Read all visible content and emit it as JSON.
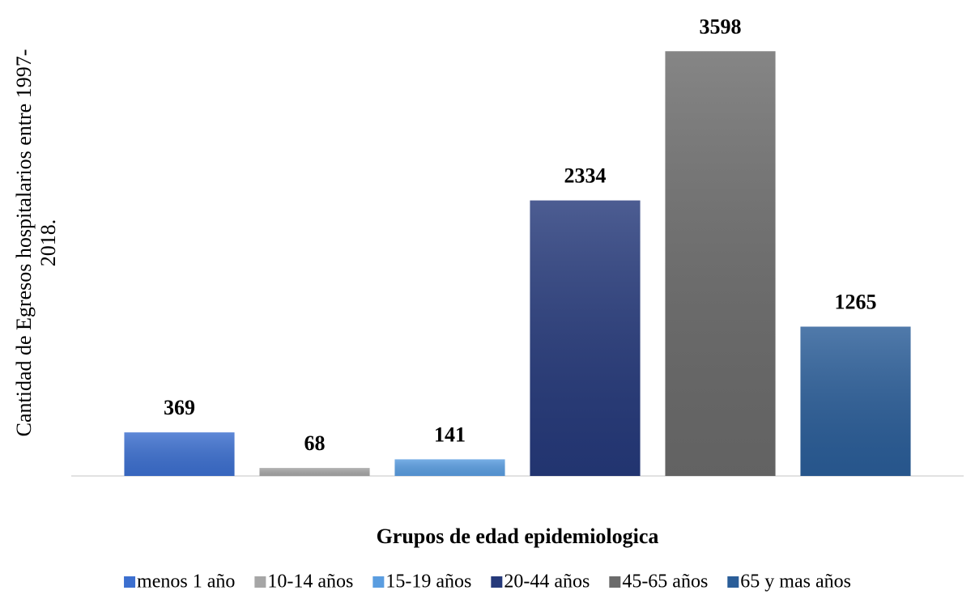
{
  "chart_data": {
    "type": "bar",
    "ylabel": [
      "Cantidad de Egresos hospitalarios entre 1997-",
      "2018."
    ],
    "xlabel": "Grupos de edad epidemiologica",
    "categories": [
      "menos 1 año",
      "10-14 años",
      "15-19 años",
      "20-44 años",
      "45-65 años",
      "65 y mas años"
    ],
    "values": [
      369,
      68,
      141,
      2334,
      3598,
      1265
    ],
    "colors": [
      "#3c6fcf",
      "#a6a6a6",
      "#5a9de0",
      "#25397a",
      "#6b6b6b",
      "#2a5d98"
    ],
    "ylim": [
      0,
      3600
    ],
    "legend": "bottom"
  }
}
